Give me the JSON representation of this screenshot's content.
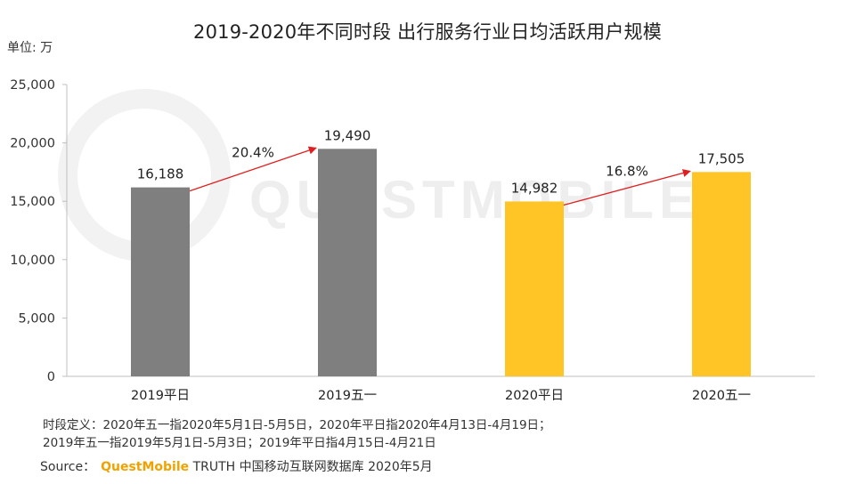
{
  "title": "2019-2020年不同时段 出行服务行业日均活跃用户规模",
  "unit_label": "单位: 万",
  "watermark": "QUESTMOBILE",
  "notes": [
    "时段定义：2020年五一指2020年5月1日-5月5日，2020年平日指2020年4月13日-4月19日；",
    "2019年五一指2019年5月1日-5月3日；2019年平日指4月15日-4月21日"
  ],
  "source": {
    "prefix": "Source：",
    "brand": "QuestMobile",
    "rest": " TRUTH 中国移动互联网数据库 2020年5月"
  },
  "chart_data": {
    "type": "bar",
    "categories": [
      "2019平日",
      "2019五一",
      "2020平日",
      "2020五一"
    ],
    "values": [
      16188,
      19490,
      14982,
      17505
    ],
    "value_labels": [
      "16,188",
      "19,490",
      "14,982",
      "17,505"
    ],
    "bar_colors": [
      "#7f7f7f",
      "#7f7f7f",
      "#ffc425",
      "#ffc425"
    ],
    "ylim": [
      0,
      25000
    ],
    "yticks": [
      0,
      5000,
      10000,
      15000,
      20000,
      25000
    ],
    "ytick_labels": [
      "0",
      "5,000",
      "10,000",
      "15,000",
      "20,000",
      "25,000"
    ],
    "growth": [
      {
        "from": 0,
        "to": 1,
        "label": "20.4%"
      },
      {
        "from": 2,
        "to": 3,
        "label": "16.8%"
      }
    ],
    "arrow_color": "#e02020",
    "title": "2019-2020年不同时段 出行服务行业日均活跃用户规模",
    "ylabel": "单位: 万",
    "xlabel": ""
  }
}
